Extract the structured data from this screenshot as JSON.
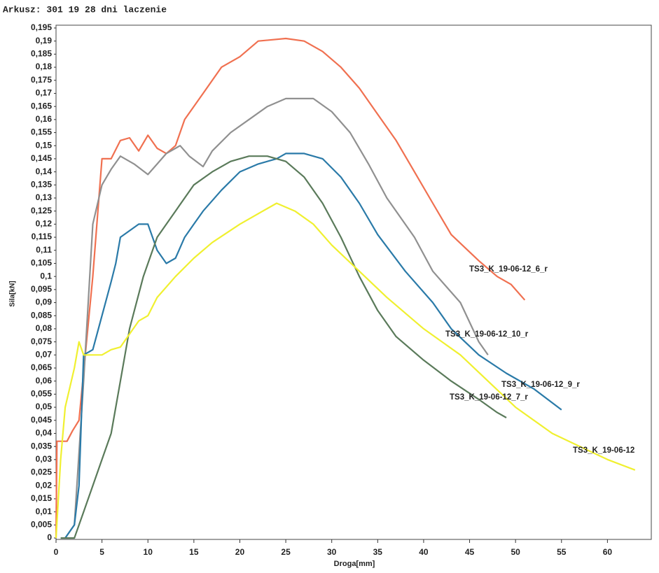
{
  "chart_data": {
    "type": "line",
    "title": "Arkusz: 301 19 28 dni laczenie",
    "x_label": "Droga[mm]",
    "y_label": "Sila[kN]",
    "xlim": [
      0,
      65
    ],
    "ylim": [
      0,
      0.195
    ],
    "xticks": [
      0,
      5,
      10,
      15,
      20,
      25,
      30,
      35,
      40,
      45,
      50,
      55,
      60
    ],
    "yticks": [
      0,
      {
        "value": 0.005,
        "label": "0,005"
      },
      {
        "value": 0.01,
        "label": "0,01"
      },
      {
        "value": 0.015,
        "label": "0,015"
      },
      {
        "value": 0.02,
        "label": "0,02"
      },
      {
        "value": 0.025,
        "label": "0,025"
      },
      {
        "value": 0.03,
        "label": "0,03"
      },
      {
        "value": 0.035,
        "label": "0,035"
      },
      {
        "value": 0.04,
        "label": "0,04"
      },
      {
        "value": 0.045,
        "label": "0,045"
      },
      {
        "value": 0.05,
        "label": "0,05"
      },
      {
        "value": 0.055,
        "label": "0,055"
      },
      {
        "value": 0.06,
        "label": "0,06"
      },
      {
        "value": 0.065,
        "label": "0,065"
      },
      {
        "value": 0.07,
        "label": "0,07"
      },
      {
        "value": 0.075,
        "label": "0,075"
      },
      {
        "value": 0.08,
        "label": "0,08"
      },
      {
        "value": 0.085,
        "label": "0,085"
      },
      {
        "value": 0.09,
        "label": "0,09"
      },
      {
        "value": 0.095,
        "label": "0,095"
      },
      {
        "value": 0.1,
        "label": "0,1"
      },
      {
        "value": 0.105,
        "label": "0,105"
      },
      {
        "value": 0.11,
        "label": "0,11"
      },
      {
        "value": 0.115,
        "label": "0,115"
      },
      {
        "value": 0.12,
        "label": "0,12"
      },
      {
        "value": 0.125,
        "label": "0,125"
      },
      {
        "value": 0.13,
        "label": "0,13"
      },
      {
        "value": 0.135,
        "label": "0,135"
      },
      {
        "value": 0.14,
        "label": "0,14"
      },
      {
        "value": 0.145,
        "label": "0,145"
      },
      {
        "value": 0.15,
        "label": "0,15"
      },
      {
        "value": 0.155,
        "label": "0,155"
      },
      {
        "value": 0.16,
        "label": "0,16"
      },
      {
        "value": 0.165,
        "label": "0,165"
      },
      {
        "value": 0.17,
        "label": "0,17"
      },
      {
        "value": 0.175,
        "label": "0,175"
      },
      {
        "value": 0.18,
        "label": "0,18"
      },
      {
        "value": 0.185,
        "label": "0,185"
      },
      {
        "value": 0.19,
        "label": "0,19"
      },
      {
        "value": 0.195,
        "label": "0,195"
      }
    ],
    "grid": false,
    "series": [
      {
        "name": "TS3_K_19-06-12_6_r",
        "color": "#f07050",
        "x": [
          0,
          0.1,
          1.2,
          1.8,
          2.5,
          4,
          5,
          6,
          7,
          8,
          9,
          10,
          11,
          12,
          13,
          14,
          16,
          18,
          20,
          22,
          25,
          27,
          29,
          31,
          33,
          35,
          37,
          39,
          41,
          43,
          46,
          48,
          49.5,
          51
        ],
        "values": [
          0,
          0.037,
          0.037,
          0.041,
          0.045,
          0.1,
          0.145,
          0.145,
          0.152,
          0.153,
          0.148,
          0.154,
          0.149,
          0.147,
          0.15,
          0.16,
          0.17,
          0.18,
          0.184,
          0.19,
          0.191,
          0.19,
          0.186,
          0.18,
          0.172,
          0.162,
          0.152,
          0.14,
          0.128,
          0.116,
          0.106,
          0.1,
          0.097,
          0.091
        ]
      },
      {
        "name": "TS3_K_19-06-12_10_r",
        "color": "#909090",
        "x": [
          1,
          2,
          3,
          4,
          5,
          6,
          7,
          8.5,
          10,
          11,
          12,
          13.5,
          14.5,
          16,
          17,
          19,
          21,
          23,
          25,
          28,
          30,
          32,
          34,
          36,
          39,
          41,
          44,
          46,
          47
        ],
        "values": [
          0,
          0.005,
          0.06,
          0.12,
          0.135,
          0.141,
          0.146,
          0.143,
          0.139,
          0.143,
          0.147,
          0.15,
          0.146,
          0.142,
          0.148,
          0.155,
          0.16,
          0.165,
          0.168,
          0.168,
          0.163,
          0.155,
          0.143,
          0.13,
          0.115,
          0.102,
          0.09,
          0.075,
          0.07
        ]
      },
      {
        "name": "TS3_K_19-06-12_9_r",
        "color": "#2a7aa8",
        "x": [
          1,
          2,
          2.5,
          3,
          4,
          5,
          6,
          6.5,
          7,
          9,
          10,
          11,
          12,
          13,
          14,
          15,
          16,
          18,
          20,
          22,
          24,
          25,
          27,
          29,
          31,
          33,
          35,
          38,
          41,
          43,
          46,
          49,
          52,
          55
        ],
        "values": [
          0,
          0.005,
          0.02,
          0.07,
          0.072,
          0.085,
          0.098,
          0.105,
          0.115,
          0.12,
          0.12,
          0.11,
          0.105,
          0.107,
          0.115,
          0.12,
          0.125,
          0.133,
          0.14,
          0.143,
          0.145,
          0.147,
          0.147,
          0.145,
          0.138,
          0.128,
          0.116,
          0.102,
          0.09,
          0.08,
          0.07,
          0.063,
          0.057,
          0.049
        ]
      },
      {
        "name": "TS3_K_19-06-12_7_r",
        "color": "#5a7a5a",
        "x": [
          0.5,
          2,
          3,
          4,
          5,
          6,
          7,
          8,
          9.5,
          11,
          13,
          15,
          17,
          19,
          21,
          23,
          25,
          27,
          29,
          31,
          33,
          35,
          37,
          40,
          43,
          46,
          48,
          49
        ],
        "values": [
          0,
          0,
          0.01,
          0.02,
          0.03,
          0.04,
          0.06,
          0.08,
          0.1,
          0.115,
          0.125,
          0.135,
          0.14,
          0.144,
          0.146,
          0.146,
          0.144,
          0.138,
          0.128,
          0.115,
          0.1,
          0.087,
          0.077,
          0.068,
          0.06,
          0.053,
          0.048,
          0.046
        ]
      },
      {
        "name": "TS3_K_19-06-12",
        "color": "#f0f030",
        "x": [
          0,
          0.5,
          1,
          2,
          2.5,
          3,
          5,
          6,
          7,
          8,
          9,
          10,
          11,
          13,
          15,
          17,
          20,
          23,
          24,
          26,
          28,
          30,
          33,
          36,
          40,
          44,
          47,
          50,
          54,
          57,
          60,
          63
        ],
        "values": [
          0,
          0.03,
          0.05,
          0.065,
          0.075,
          0.07,
          0.07,
          0.072,
          0.073,
          0.078,
          0.083,
          0.085,
          0.092,
          0.1,
          0.107,
          0.113,
          0.12,
          0.126,
          0.128,
          0.125,
          0.12,
          0.112,
          0.102,
          0.092,
          0.08,
          0.07,
          0.06,
          0.05,
          0.04,
          0.035,
          0.03,
          0.026
        ]
      }
    ]
  }
}
